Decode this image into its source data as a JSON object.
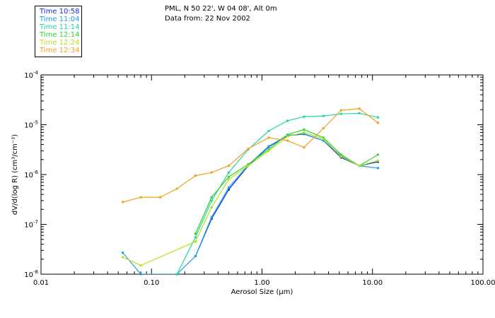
{
  "header": {
    "location": "PML, N 50 22', W 04 08', Alt 0m",
    "data_from": "Data from: 22 Nov 2002"
  },
  "legend": {
    "entries": [
      {
        "label": "Time 10:58",
        "color": "#1a2dd8"
      },
      {
        "label": "Time 11:04",
        "color": "#1aa0e6"
      },
      {
        "label": "Time 11:14",
        "color": "#22d6a0"
      },
      {
        "label": "Time 12:14",
        "color": "#2fd42f"
      },
      {
        "label": "Time 12:24",
        "color": "#b8e01a"
      },
      {
        "label": "Time 12:34",
        "color": "#f0a020"
      }
    ]
  },
  "chart_data": {
    "type": "line",
    "xlabel": "Aerosol Size (µm)",
    "ylabel": "dV/d(log R) (cm³/cm⁻³)",
    "x_scale": "log",
    "y_scale": "log",
    "xlim": [
      0.01,
      100
    ],
    "ylim": [
      1e-08,
      0.0001
    ],
    "x_ticks": [
      {
        "v": 0.01,
        "label": "0.01"
      },
      {
        "v": 0.1,
        "label": "0.10"
      },
      {
        "v": 1,
        "label": "1.00"
      },
      {
        "v": 10,
        "label": "10.00"
      },
      {
        "v": 100,
        "label": "100.00"
      }
    ],
    "y_ticks": [
      {
        "v": 1e-08,
        "base": "10",
        "exp": "-8"
      },
      {
        "v": 1e-07,
        "base": "10",
        "exp": "-7"
      },
      {
        "v": 1e-06,
        "base": "10",
        "exp": "-6"
      },
      {
        "v": 1e-05,
        "base": "10",
        "exp": "-5"
      },
      {
        "v": 0.0001,
        "base": "10",
        "exp": "-4"
      }
    ],
    "series": [
      {
        "name": "Time 10:58",
        "color": "#1a2dd8",
        "x": [
          0.25,
          0.35,
          0.5,
          0.75,
          1.15,
          1.7,
          2.4,
          3.6,
          5.2,
          7.6,
          11.2
        ],
        "y": [
          2.3e-08,
          1.3e-07,
          5e-07,
          1.5e-06,
          3.6e-06,
          6e-06,
          6.5e-06,
          4.8e-06,
          2.2e-06,
          1.5e-06,
          1.8e-06
        ]
      },
      {
        "name": "Time 11:04",
        "color": "#1aa0e6",
        "x": [
          0.055,
          0.08,
          0.17,
          0.25,
          0.35,
          0.5,
          0.75,
          1.15,
          1.7,
          2.4,
          3.6,
          5.2,
          7.6,
          11.2
        ],
        "y": [
          2.7e-08,
          1e-08,
          1e-08,
          2.3e-08,
          1.4e-07,
          5.5e-07,
          1.55e-06,
          3.7e-06,
          6.1e-06,
          6.6e-06,
          4.8e-06,
          2.4e-06,
          1.5e-06,
          1.35e-06
        ]
      },
      {
        "name": "Time 11:14",
        "color": "#22d6a0",
        "x": [
          0.17,
          0.25,
          0.35,
          0.5,
          0.75,
          1.15,
          1.7,
          2.4,
          3.6,
          5.2,
          7.6,
          11.2
        ],
        "y": [
          1e-08,
          5.5e-08,
          3e-07,
          1.1e-06,
          3.2e-06,
          7.5e-06,
          1.2e-05,
          1.45e-05,
          1.5e-05,
          1.65e-05,
          1.7e-05,
          1.4e-05
        ]
      },
      {
        "name": "Time 12:14",
        "color": "#2fd42f",
        "x": [
          0.25,
          0.35,
          0.5,
          0.75,
          1.15,
          1.7,
          2.4,
          3.6,
          5.2,
          7.6,
          11.2
        ],
        "y": [
          6.5e-08,
          3.5e-07,
          9e-07,
          1.6e-06,
          3.2e-06,
          6.3e-06,
          8e-06,
          5.5e-06,
          2.5e-06,
          1.5e-06,
          2.5e-06
        ]
      },
      {
        "name": "Time 12:24",
        "color": "#b8e01a",
        "x": [
          0.055,
          0.08,
          0.25,
          0.35,
          0.5,
          0.75,
          1.15,
          1.7,
          2.4,
          3.6,
          5.2,
          7.6,
          11.2
        ],
        "y": [
          2.2e-08,
          1.5e-08,
          4.5e-08,
          2.2e-07,
          8e-07,
          1.5e-06,
          3e-06,
          5.8e-06,
          7e-06,
          5.2e-06,
          2.3e-06,
          1.5e-06,
          1.9e-06
        ]
      },
      {
        "name": "Time 12:34",
        "color": "#f0a020",
        "x": [
          0.055,
          0.08,
          0.12,
          0.17,
          0.25,
          0.35,
          0.5,
          0.75,
          1.15,
          1.7,
          2.4,
          3.6,
          5.2,
          7.6,
          11.2
        ],
        "y": [
          2.8e-07,
          3.5e-07,
          3.5e-07,
          5.2e-07,
          9.5e-07,
          1.1e-06,
          1.5e-06,
          3.3e-06,
          5.5e-06,
          4.8e-06,
          3.5e-06,
          8.5e-06,
          1.95e-05,
          2.1e-05,
          1.1e-05
        ]
      }
    ]
  }
}
